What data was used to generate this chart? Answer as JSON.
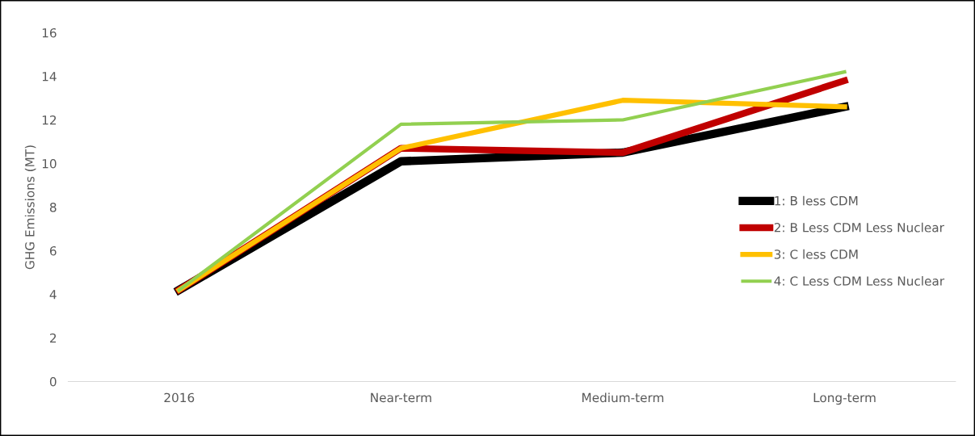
{
  "chart_data": {
    "type": "line",
    "ylabel": "GHG Emissions (MT)",
    "categories": [
      "2016",
      "Near-term",
      "Medium-term",
      "Long-term"
    ],
    "series": [
      {
        "name": "1: B less CDM",
        "color": "#000000",
        "values": [
          4.2,
          10.1,
          10.5,
          12.6
        ]
      },
      {
        "name": "2: B Less CDM Less Nuclear",
        "color": "#c00000",
        "values": [
          4.2,
          10.7,
          10.5,
          13.8
        ]
      },
      {
        "name": "3: C less CDM",
        "color": "#ffc000",
        "values": [
          4.2,
          10.7,
          12.9,
          12.6
        ]
      },
      {
        "name": "4: C Less CDM Less Nuclear",
        "color": "#92d050",
        "values": [
          4.2,
          11.8,
          12.0,
          14.2
        ]
      }
    ],
    "ylim": [
      0,
      16
    ],
    "yticks": [
      0,
      2,
      4,
      6,
      8,
      10,
      12,
      14,
      16
    ],
    "grid": false,
    "legend": "right",
    "marker": "none",
    "line_style": "solid"
  }
}
